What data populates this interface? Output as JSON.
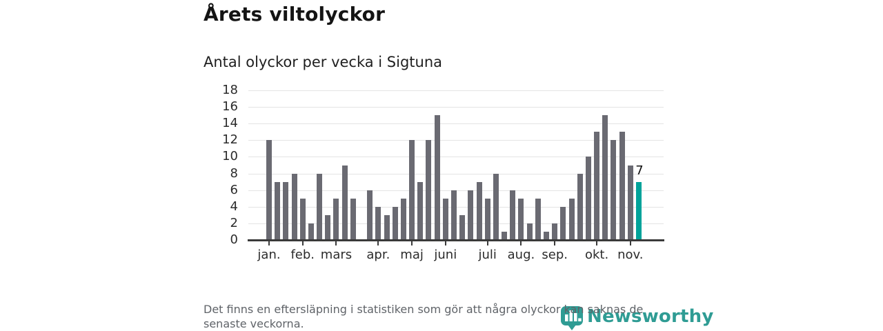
{
  "header": {
    "title": "Årets viltolyckor",
    "subtitle": "Antal olyckor per vecka i Sigtuna"
  },
  "chart_data": {
    "type": "bar",
    "title": "Årets viltolyckor",
    "subtitle": "Antal olyckor per vecka i Sigtuna",
    "xlabel": "",
    "ylabel": "",
    "ylim": [
      0,
      18
    ],
    "yticks": [
      0,
      2,
      4,
      6,
      8,
      10,
      12,
      14,
      16,
      18
    ],
    "grid": true,
    "legend_position": "none",
    "unit": "olyckor per vecka",
    "values": [
      12,
      7,
      7,
      8,
      5,
      2,
      8,
      3,
      5,
      9,
      5,
      0,
      6,
      4,
      3,
      4,
      5,
      12,
      7,
      12,
      15,
      5,
      6,
      3,
      6,
      7,
      5,
      8,
      1,
      6,
      5,
      2,
      5,
      1,
      2,
      4,
      5,
      8,
      10,
      13,
      15,
      12,
      13,
      9,
      7
    ],
    "month_ticks": [
      {
        "label": "jan.",
        "index": 0
      },
      {
        "label": "feb.",
        "index": 4
      },
      {
        "label": "mars",
        "index": 8
      },
      {
        "label": "apr.",
        "index": 13
      },
      {
        "label": "maj",
        "index": 17
      },
      {
        "label": "juni",
        "index": 21
      },
      {
        "label": "juli",
        "index": 26
      },
      {
        "label": "aug.",
        "index": 30
      },
      {
        "label": "sep.",
        "index": 34
      },
      {
        "label": "okt.",
        "index": 39
      },
      {
        "label": "nov.",
        "index": 43
      }
    ],
    "highlight_index": 44,
    "highlight_value_label": "7",
    "bar_color": "#6a6a72",
    "highlight_color": "#00a39a",
    "gridline_color": "#e4e4e4",
    "axis_color": "#3a3a3a"
  },
  "footer": {
    "note": "Det finns en eftersläpning i statistiken som gör att några olyckor kan saknas de senaste veckorna."
  },
  "branding": {
    "logo_text": "Newsworthy",
    "logo_icon": "newsworthy-bubble-barchart-icon",
    "logo_color": "#2f9c94"
  }
}
